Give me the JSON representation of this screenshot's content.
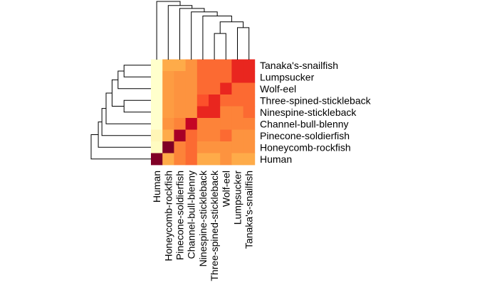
{
  "chart_data": {
    "type": "heatmap",
    "title": "",
    "xlabel": "",
    "ylabel": "",
    "columns": [
      "Human",
      "Honeycomb-rockfish",
      "Pinecone-soldierfish",
      "Channel-bull-blenny",
      "Ninespine-stickleback",
      "Three-spined-stickleback",
      "Wolf-eel",
      "Lumpsucker",
      "Tanaka's-snailfish"
    ],
    "rows": [
      "Tanaka's-snailfish",
      "Lumpsucker",
      "Wolf-eel",
      "Three-spined-stickleback",
      "Ninespine-stickleback",
      "Channel-bull-blenny",
      "Pinecone-soldierfish",
      "Honeycomb-rockfish",
      "Human"
    ],
    "color_scale": {
      "low": "#FFFFCC",
      "high": "#800026",
      "stops": [
        "#FFFFCC",
        "#FFEDA0",
        "#FED976",
        "#FEB24C",
        "#FD8D3C",
        "#FC4E2A",
        "#E31A1C",
        "#BD0026",
        "#800026"
      ]
    },
    "values": [
      [
        0.0,
        0.4,
        0.4,
        0.48,
        0.57,
        0.57,
        0.57,
        0.72,
        0.72
      ],
      [
        0.0,
        0.45,
        0.48,
        0.48,
        0.57,
        0.57,
        0.57,
        0.72,
        0.72
      ],
      [
        0.0,
        0.45,
        0.48,
        0.48,
        0.57,
        0.57,
        0.72,
        0.57,
        0.57
      ],
      [
        0.0,
        0.45,
        0.48,
        0.48,
        0.62,
        0.72,
        0.57,
        0.57,
        0.57
      ],
      [
        0.0,
        0.45,
        0.48,
        0.48,
        0.72,
        0.72,
        0.52,
        0.52,
        0.57
      ],
      [
        0.0,
        0.48,
        0.52,
        0.85,
        0.52,
        0.52,
        0.52,
        0.52,
        0.52
      ],
      [
        0.06,
        0.4,
        0.92,
        0.57,
        0.52,
        0.52,
        0.57,
        0.48,
        0.48
      ],
      [
        0.03,
        1.0,
        0.52,
        0.57,
        0.48,
        0.48,
        0.48,
        0.48,
        0.48
      ],
      [
        1.0,
        0.4,
        0.52,
        0.57,
        0.4,
        0.4,
        0.48,
        0.4,
        0.4
      ]
    ],
    "dendrogram_top": [
      [
        5,
        6,
        0.45
      ],
      [
        7,
        8,
        0.55
      ],
      [
        9,
        10,
        0.65
      ],
      [
        4,
        11,
        0.75
      ],
      [
        3,
        12,
        0.82
      ],
      [
        2,
        13,
        0.88
      ],
      [
        1,
        14,
        0.93
      ],
      [
        0,
        15,
        1.0
      ]
    ],
    "dendrogram_left": [
      [
        0,
        1,
        0.45
      ],
      [
        3,
        4,
        0.45
      ],
      [
        9,
        2,
        0.55
      ],
      [
        11,
        10,
        0.65
      ],
      [
        12,
        5,
        0.75
      ],
      [
        13,
        6,
        0.82
      ],
      [
        14,
        7,
        0.88
      ],
      [
        15,
        8,
        1.0
      ]
    ],
    "grid": false,
    "legend": "none"
  }
}
